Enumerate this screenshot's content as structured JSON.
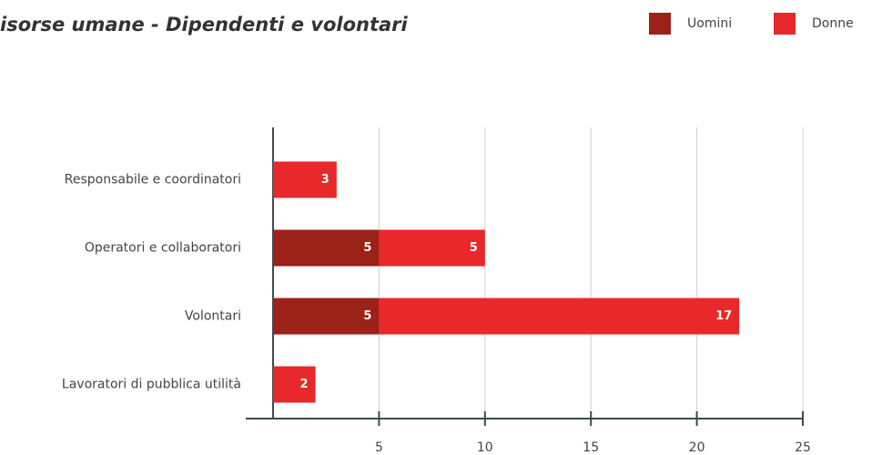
{
  "chart_data": {
    "type": "stacked_barh",
    "title": "isorse umane - Dipendenti e volontari",
    "categories": [
      "Responsabile e coordinatori",
      "Operatori e collaboratori",
      "Volontari",
      "Lavoratori di pubblica utilità"
    ],
    "series": [
      {
        "name": "Uomini",
        "color": "#9b2119",
        "values": [
          0,
          5,
          5,
          0
        ]
      },
      {
        "name": "Donne",
        "color": "#e8282a",
        "values": [
          3,
          5,
          17,
          2
        ]
      }
    ],
    "xlim": [
      0,
      25
    ],
    "xticks": [
      5,
      10,
      15,
      20,
      25
    ],
    "grid": true,
    "legend": "top-right"
  }
}
